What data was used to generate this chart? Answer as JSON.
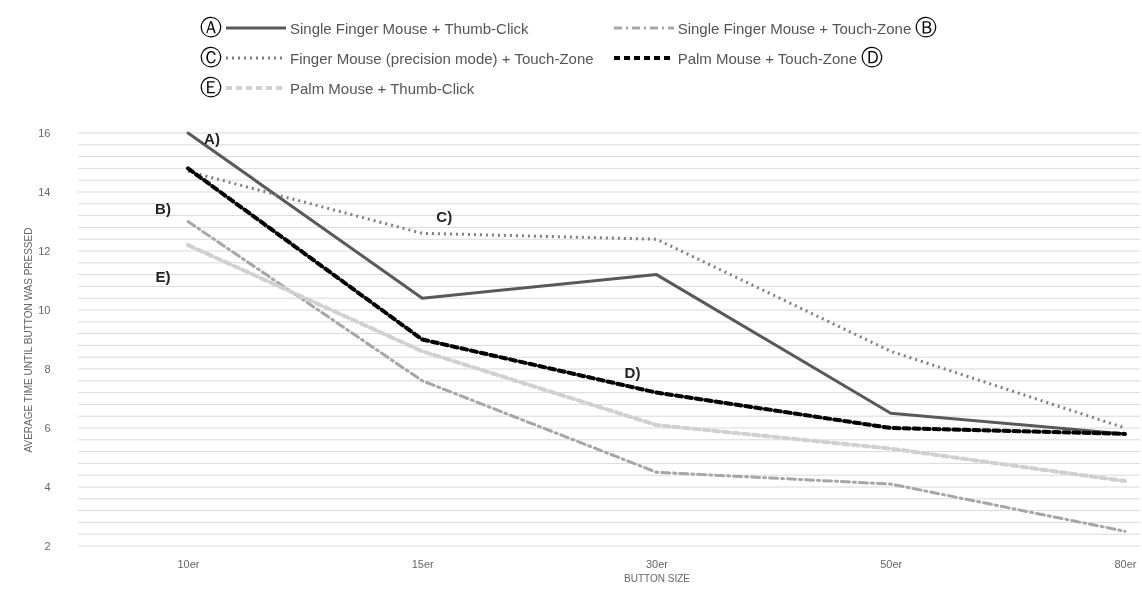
{
  "chart_data": {
    "type": "line",
    "xlabel": "BUTTON SIZE",
    "ylabel": "AVERAGE TIME UNTIL BUTTON WAS PRESSED",
    "categories": [
      "10er",
      "15er",
      "30er",
      "50er",
      "80er"
    ],
    "series": [
      {
        "name": "Single Finger Mouse + Thumb-Click",
        "color": "#595959",
        "line_style": "solid",
        "values": [
          16,
          10.4,
          11.2,
          6.5,
          5.8
        ]
      },
      {
        "name": "Single Finger Mouse + Touch-Zone",
        "color": "#a6a6a6",
        "line_style": "dashdot",
        "values": [
          13.0,
          7.6,
          4.5,
          4.1,
          2.5
        ]
      },
      {
        "name": "Finger Mouse (precision mode) + Touch-Zone",
        "color": "#7f7f7f",
        "line_style": "dotted",
        "values": [
          14.7,
          12.6,
          12.4,
          8.6,
          6.0
        ]
      },
      {
        "name": "Palm Mouse + Touch-Zone",
        "color": "#000000",
        "line_style": "dashed",
        "values": [
          14.8,
          9.0,
          7.2,
          6.0,
          5.8
        ]
      },
      {
        "name": "Palm Mouse + Thumb-Click",
        "color": "#d0d0d0",
        "line_style": "dashed",
        "values": [
          12.2,
          8.6,
          6.1,
          5.3,
          4.2
        ]
      }
    ],
    "ylim": [
      2,
      16
    ],
    "yticks": [
      2,
      {
        "value": 2.4,
        "label": null
      },
      {
        "value": 2.8,
        "label": null
      },
      {
        "value": 3.2,
        "label": null
      },
      {
        "value": 3.6,
        "label": null
      },
      4,
      {
        "value": 4.4,
        "label": null
      },
      {
        "value": 4.8,
        "label": null
      },
      {
        "value": 5.2,
        "label": null
      },
      {
        "value": 5.6,
        "label": null
      },
      6,
      {
        "value": 6.4,
        "label": null
      },
      {
        "value": 6.8,
        "label": null
      },
      {
        "value": 7.2,
        "label": null
      },
      {
        "value": 7.6,
        "label": null
      },
      8,
      {
        "value": 8.4,
        "label": null
      },
      {
        "value": 8.8,
        "label": null
      },
      {
        "value": 9.2,
        "label": null
      },
      {
        "value": 9.6,
        "label": null
      },
      10,
      {
        "value": 10.4,
        "label": null
      },
      {
        "value": 10.8,
        "label": null
      },
      {
        "value": 11.2,
        "label": null
      },
      {
        "value": 11.6,
        "label": null
      },
      12,
      {
        "value": 12.4,
        "label": null
      },
      {
        "value": 12.8,
        "label": null
      },
      {
        "value": 13.2,
        "label": null
      },
      {
        "value": 13.6,
        "label": null
      },
      14,
      {
        "value": 14.4,
        "label": null
      },
      {
        "value": 14.8,
        "label": null
      },
      {
        "value": 15.2,
        "label": null
      },
      {
        "value": 15.6,
        "label": null
      },
      16
    ],
    "grid": "y",
    "legend": "top",
    "marker": "none",
    "annotations": [
      "Ⓐ",
      "Ⓑ",
      "Ⓒ",
      "Ⓓ",
      "Ⓔ",
      {
        "text": "A)",
        "x": "10er",
        "y": 16
      },
      {
        "text": "B)",
        "x": "10er",
        "y": 13.0
      },
      {
        "text": "E)",
        "x": "10er",
        "y": 12.2
      },
      {
        "text": "C)",
        "x": "15er",
        "y": 12.6
      },
      {
        "text": "D)",
        "x": "30er",
        "y": 7.2
      }
    ]
  }
}
